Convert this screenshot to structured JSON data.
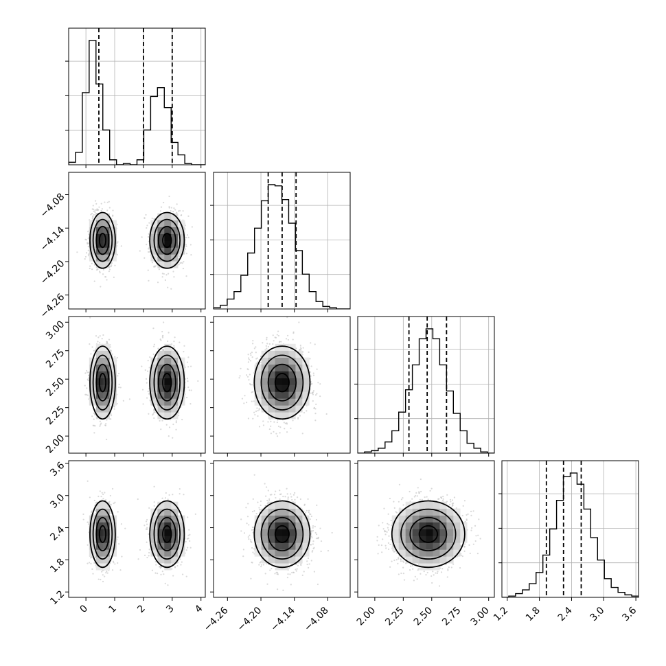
{
  "chart_data": {
    "type": "corner",
    "title": "",
    "grid": true,
    "marginal_hist_color": "#000000",
    "density_colormap": [
      "#ffffff",
      "#000000"
    ],
    "scatter_color": "#bfbfbf",
    "parameters": [
      {
        "index": 0,
        "range": [
          -0.6,
          4.15
        ],
        "ticks": [
          0,
          1,
          2,
          3,
          4
        ],
        "tick_labels": [
          "0",
          "1",
          "2",
          "3",
          "4"
        ],
        "quantile_lines": [
          0.45,
          2.0,
          3.0
        ],
        "modes": [
          {
            "mean": 0.58,
            "sd": 0.22,
            "weight": 0.5
          },
          {
            "mean": 2.82,
            "sd": 0.3,
            "weight": 0.5
          }
        ]
      },
      {
        "index": 1,
        "range": [
          -4.285,
          -4.04
        ],
        "ticks": [
          -4.26,
          -4.2,
          -4.14,
          -4.08
        ],
        "tick_labels": [
          "−4.26",
          "−4.20",
          "−4.14",
          "−4.08"
        ],
        "quantile_lines": [
          -4.187,
          -4.162,
          -4.137
        ],
        "modes": [
          {
            "mean": -4.162,
            "sd": 0.025,
            "weight": 1.0
          }
        ]
      },
      {
        "index": 2,
        "range": [
          1.85,
          3.05
        ],
        "ticks": [
          2.0,
          2.25,
          2.5,
          2.75,
          3.0
        ],
        "tick_labels": [
          "2.00",
          "2.25",
          "2.50",
          "2.75",
          "3.00"
        ],
        "quantile_lines": [
          2.3,
          2.46,
          2.63
        ],
        "modes": [
          {
            "mean": 2.47,
            "sd": 0.16,
            "weight": 1.0
          }
        ]
      },
      {
        "index": 3,
        "range": [
          1.1,
          3.65
        ],
        "ticks": [
          1.2,
          1.8,
          2.4,
          3.0,
          3.6
        ],
        "tick_labels": [
          "1.2",
          "1.8",
          "2.4",
          "3.0",
          "3.6"
        ],
        "quantile_lines": [
          1.93,
          2.25,
          2.58
        ],
        "modes": [
          {
            "mean": 2.28,
            "sd": 0.31,
            "weight": 1.0
          }
        ]
      }
    ],
    "marginal_histograms": [
      {
        "param": 0,
        "bins": 20,
        "edges_range": [
          -0.6,
          4.15
        ],
        "counts": [
          2,
          10,
          58,
          100,
          65,
          28,
          4,
          0,
          1,
          0,
          4,
          28,
          55,
          62,
          46,
          18,
          8,
          1,
          0,
          0
        ]
      },
      {
        "param": 1,
        "bins": 20,
        "edges_range": [
          -4.285,
          -4.04
        ],
        "counts": [
          1,
          3,
          8,
          14,
          27,
          45,
          65,
          87,
          100,
          99,
          88,
          69,
          47,
          28,
          14,
          6,
          2,
          1,
          0,
          0
        ]
      },
      {
        "param": 2,
        "bins": 20,
        "edges_range": [
          1.85,
          3.05
        ],
        "counts": [
          0,
          1,
          2,
          4,
          9,
          18,
          33,
          51,
          71,
          92,
          100,
          92,
          71,
          50,
          32,
          18,
          8,
          4,
          1,
          0
        ]
      },
      {
        "param": 3,
        "bins": 20,
        "edges_range": [
          1.1,
          3.65
        ],
        "counts": [
          0,
          1,
          3,
          6,
          11,
          20,
          34,
          55,
          78,
          97,
          100,
          91,
          71,
          48,
          30,
          15,
          8,
          4,
          2,
          1
        ]
      }
    ]
  }
}
